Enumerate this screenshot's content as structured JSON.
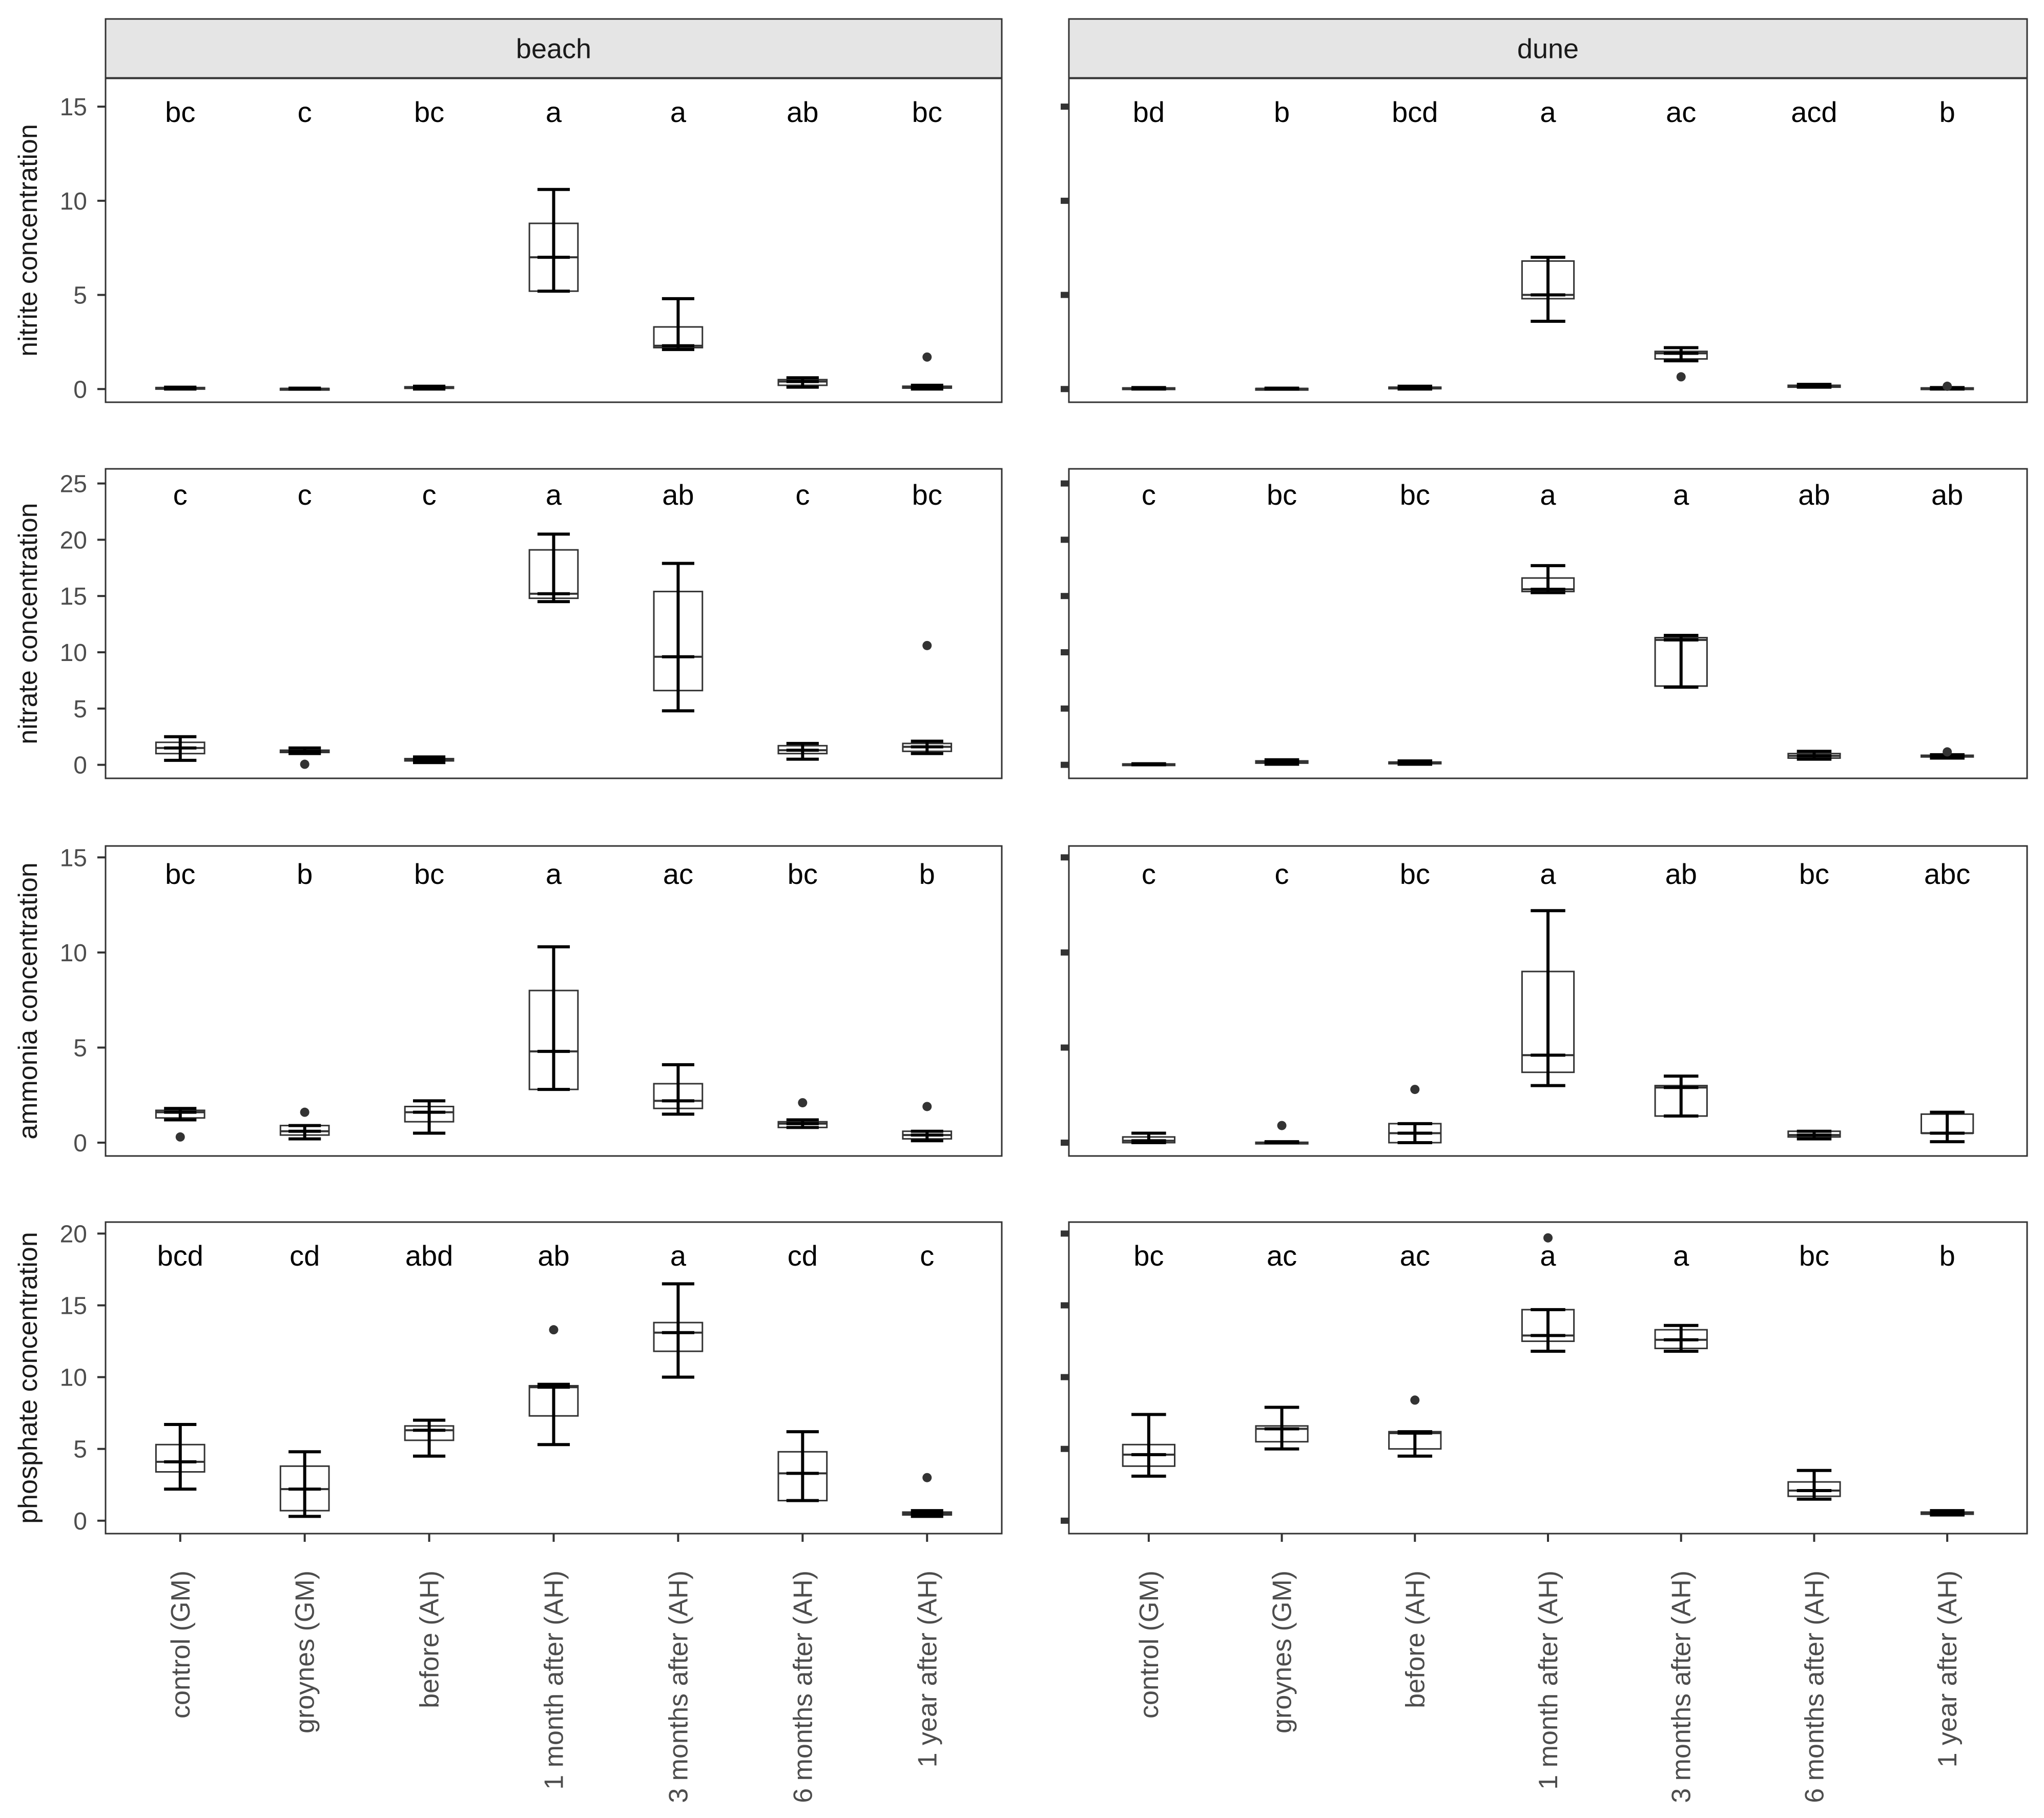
{
  "chart_data": {
    "type": "boxplot",
    "facets": [
      "beach",
      "dune"
    ],
    "categories": [
      "control (GM)",
      "groynes (GM)",
      "before (AH)",
      "1 month after (AH)",
      "3 months after (AH)",
      "6 months after (AH)",
      "1 year after (AH)"
    ],
    "rows": [
      {
        "ylabel": "nitrite concentration",
        "ylim": [
          -0.7,
          16.5
        ],
        "yticks": [
          0,
          5,
          10,
          15
        ],
        "panels": [
          {
            "facet": "beach",
            "letters": [
              "bc",
              "c",
              "bc",
              "a",
              "a",
              "ab",
              "bc"
            ],
            "boxes": [
              {
                "lo": 0.0,
                "q1": 0.02,
                "med": 0.05,
                "q3": 0.08,
                "hi": 0.1,
                "outliers": []
              },
              {
                "lo": 0.0,
                "q1": 0.01,
                "med": 0.02,
                "q3": 0.03,
                "hi": 0.05,
                "outliers": []
              },
              {
                "lo": 0.0,
                "q1": 0.05,
                "med": 0.08,
                "q3": 0.12,
                "hi": 0.15,
                "outliers": []
              },
              {
                "lo": 5.2,
                "q1": 5.2,
                "med": 7.0,
                "q3": 8.8,
                "hi": 10.6,
                "outliers": []
              },
              {
                "lo": 2.1,
                "q1": 2.2,
                "med": 2.3,
                "q3": 3.3,
                "hi": 4.8,
                "outliers": []
              },
              {
                "lo": 0.1,
                "q1": 0.2,
                "med": 0.4,
                "q3": 0.5,
                "hi": 0.6,
                "outliers": []
              },
              {
                "lo": 0.0,
                "q1": 0.05,
                "med": 0.1,
                "q3": 0.15,
                "hi": 0.2,
                "outliers": [
                  1.7
                ]
              }
            ]
          },
          {
            "facet": "dune",
            "letters": [
              "bd",
              "b",
              "bcd",
              "a",
              "ac",
              "acd",
              "b"
            ],
            "boxes": [
              {
                "lo": 0.0,
                "q1": 0.02,
                "med": 0.04,
                "q3": 0.06,
                "hi": 0.08,
                "outliers": []
              },
              {
                "lo": 0.0,
                "q1": 0.01,
                "med": 0.02,
                "q3": 0.03,
                "hi": 0.05,
                "outliers": []
              },
              {
                "lo": 0.0,
                "q1": 0.05,
                "med": 0.08,
                "q3": 0.1,
                "hi": 0.15,
                "outliers": []
              },
              {
                "lo": 3.6,
                "q1": 4.8,
                "med": 5.0,
                "q3": 6.8,
                "hi": 7.0,
                "outliers": []
              },
              {
                "lo": 1.5,
                "q1": 1.6,
                "med": 1.9,
                "q3": 2.0,
                "hi": 2.2,
                "outliers": [
                  0.65
                ]
              },
              {
                "lo": 0.1,
                "q1": 0.1,
                "med": 0.15,
                "q3": 0.2,
                "hi": 0.25,
                "outliers": []
              },
              {
                "lo": 0.0,
                "q1": 0.02,
                "med": 0.04,
                "q3": 0.06,
                "hi": 0.08,
                "outliers": [
                  0.15
                ]
              }
            ]
          }
        ]
      },
      {
        "ylabel": "nitrate concentration",
        "ylim": [
          -1.2,
          26.3
        ],
        "yticks": [
          0,
          5,
          10,
          15,
          20,
          25
        ],
        "panels": [
          {
            "facet": "beach",
            "letters": [
              "c",
              "c",
              "c",
              "a",
              "ab",
              "c",
              "bc"
            ],
            "boxes": [
              {
                "lo": 0.4,
                "q1": 1.0,
                "med": 1.5,
                "q3": 2.0,
                "hi": 2.5,
                "outliers": []
              },
              {
                "lo": 1.0,
                "q1": 1.1,
                "med": 1.2,
                "q3": 1.3,
                "hi": 1.5,
                "outliers": [
                  0.05
                ]
              },
              {
                "lo": 0.2,
                "q1": 0.35,
                "med": 0.45,
                "q3": 0.55,
                "hi": 0.7,
                "outliers": []
              },
              {
                "lo": 14.5,
                "q1": 14.8,
                "med": 15.2,
                "q3": 19.1,
                "hi": 20.5,
                "outliers": []
              },
              {
                "lo": 4.8,
                "q1": 6.6,
                "med": 9.6,
                "q3": 15.4,
                "hi": 17.9,
                "outliers": []
              },
              {
                "lo": 0.5,
                "q1": 1.0,
                "med": 1.3,
                "q3": 1.7,
                "hi": 1.9,
                "outliers": []
              },
              {
                "lo": 1.0,
                "q1": 1.2,
                "med": 1.6,
                "q3": 1.9,
                "hi": 2.1,
                "outliers": [
                  10.6
                ]
              }
            ]
          },
          {
            "facet": "dune",
            "letters": [
              "c",
              "bc",
              "bc",
              "a",
              "a",
              "ab",
              "ab"
            ],
            "boxes": [
              {
                "lo": 0.0,
                "q1": 0.02,
                "med": 0.05,
                "q3": 0.08,
                "hi": 0.1,
                "outliers": []
              },
              {
                "lo": 0.05,
                "q1": 0.15,
                "med": 0.25,
                "q3": 0.35,
                "hi": 0.45,
                "outliers": []
              },
              {
                "lo": 0.05,
                "q1": 0.1,
                "med": 0.15,
                "q3": 0.25,
                "hi": 0.35,
                "outliers": []
              },
              {
                "lo": 15.3,
                "q1": 15.4,
                "med": 15.6,
                "q3": 16.6,
                "hi": 17.7,
                "outliers": []
              },
              {
                "lo": 6.9,
                "q1": 7.0,
                "med": 11.1,
                "q3": 11.3,
                "hi": 11.5,
                "outliers": []
              },
              {
                "lo": 0.5,
                "q1": 0.6,
                "med": 0.8,
                "q3": 1.0,
                "hi": 1.2,
                "outliers": []
              },
              {
                "lo": 0.6,
                "q1": 0.7,
                "med": 0.8,
                "q3": 0.85,
                "hi": 0.9,
                "outliers": [
                  1.15
                ]
              }
            ]
          }
        ]
      },
      {
        "ylabel": "ammonia concentration",
        "ylim": [
          -0.7,
          15.6
        ],
        "yticks": [
          0,
          5,
          10,
          15
        ],
        "panels": [
          {
            "facet": "beach",
            "letters": [
              "bc",
              "b",
              "bc",
              "a",
              "ac",
              "bc",
              "b"
            ],
            "boxes": [
              {
                "lo": 1.2,
                "q1": 1.3,
                "med": 1.6,
                "q3": 1.7,
                "hi": 1.8,
                "outliers": [
                  0.3
                ]
              },
              {
                "lo": 0.2,
                "q1": 0.4,
                "med": 0.6,
                "q3": 0.9,
                "hi": 0.9,
                "outliers": [
                  1.6
                ]
              },
              {
                "lo": 0.5,
                "q1": 1.1,
                "med": 1.6,
                "q3": 1.9,
                "hi": 2.2,
                "outliers": []
              },
              {
                "lo": 2.8,
                "q1": 2.8,
                "med": 4.8,
                "q3": 8.0,
                "hi": 10.3,
                "outliers": []
              },
              {
                "lo": 1.5,
                "q1": 1.8,
                "med": 2.2,
                "q3": 3.1,
                "hi": 4.1,
                "outliers": []
              },
              {
                "lo": 0.8,
                "q1": 0.8,
                "med": 1.0,
                "q3": 1.1,
                "hi": 1.2,
                "outliers": [
                  2.1
                ]
              },
              {
                "lo": 0.1,
                "q1": 0.2,
                "med": 0.4,
                "q3": 0.6,
                "hi": 0.6,
                "outliers": [
                  1.9
                ]
              }
            ]
          },
          {
            "facet": "dune",
            "letters": [
              "c",
              "c",
              "bc",
              "a",
              "ab",
              "bc",
              "abc"
            ],
            "boxes": [
              {
                "lo": 0.0,
                "q1": 0.0,
                "med": 0.1,
                "q3": 0.3,
                "hi": 0.5,
                "outliers": []
              },
              {
                "lo": 0.0,
                "q1": 0.0,
                "med": 0.0,
                "q3": 0.02,
                "hi": 0.05,
                "outliers": [
                  0.9
                ]
              },
              {
                "lo": 0.0,
                "q1": 0.0,
                "med": 0.5,
                "q3": 1.0,
                "hi": 1.0,
                "outliers": [
                  2.8
                ]
              },
              {
                "lo": 3.0,
                "q1": 3.7,
                "med": 4.6,
                "q3": 9.0,
                "hi": 12.2,
                "outliers": []
              },
              {
                "lo": 1.4,
                "q1": 1.4,
                "med": 2.9,
                "q3": 3.0,
                "hi": 3.5,
                "outliers": []
              },
              {
                "lo": 0.2,
                "q1": 0.3,
                "med": 0.4,
                "q3": 0.6,
                "hi": 0.6,
                "outliers": []
              },
              {
                "lo": 0.05,
                "q1": 0.5,
                "med": 0.5,
                "q3": 1.5,
                "hi": 1.6,
                "outliers": []
              }
            ]
          }
        ]
      },
      {
        "ylabel": "phosphate concentration",
        "ylim": [
          -0.9,
          20.8
        ],
        "yticks": [
          0,
          5,
          10,
          15,
          20
        ],
        "panels": [
          {
            "facet": "beach",
            "letters": [
              "bcd",
              "cd",
              "abd",
              "ab",
              "a",
              "cd",
              "c"
            ],
            "boxes": [
              {
                "lo": 2.2,
                "q1": 3.4,
                "med": 4.1,
                "q3": 5.3,
                "hi": 6.7,
                "outliers": []
              },
              {
                "lo": 0.3,
                "q1": 0.7,
                "med": 2.2,
                "q3": 3.8,
                "hi": 4.8,
                "outliers": []
              },
              {
                "lo": 4.5,
                "q1": 5.6,
                "med": 6.3,
                "q3": 6.6,
                "hi": 7.0,
                "outliers": []
              },
              {
                "lo": 5.3,
                "q1": 7.3,
                "med": 9.3,
                "q3": 9.4,
                "hi": 9.5,
                "outliers": [
                  13.3
                ]
              },
              {
                "lo": 10.0,
                "q1": 11.8,
                "med": 13.1,
                "q3": 13.8,
                "hi": 16.5,
                "outliers": []
              },
              {
                "lo": 1.4,
                "q1": 1.4,
                "med": 3.3,
                "q3": 4.8,
                "hi": 6.2,
                "outliers": []
              },
              {
                "lo": 0.3,
                "q1": 0.4,
                "med": 0.5,
                "q3": 0.6,
                "hi": 0.7,
                "outliers": [
                  3.0
                ]
              }
            ]
          },
          {
            "facet": "dune",
            "letters": [
              "bc",
              "ac",
              "ac",
              "a",
              "a",
              "bc",
              "b"
            ],
            "boxes": [
              {
                "lo": 3.1,
                "q1": 3.8,
                "med": 4.6,
                "q3": 5.3,
                "hi": 7.4,
                "outliers": []
              },
              {
                "lo": 5.0,
                "q1": 5.5,
                "med": 6.4,
                "q3": 6.6,
                "hi": 7.9,
                "outliers": []
              },
              {
                "lo": 4.5,
                "q1": 5.0,
                "med": 6.1,
                "q3": 6.2,
                "hi": 6.2,
                "outliers": [
                  8.4
                ]
              },
              {
                "lo": 11.8,
                "q1": 12.5,
                "med": 12.9,
                "q3": 14.7,
                "hi": 14.7,
                "outliers": [
                  19.7
                ]
              },
              {
                "lo": 11.8,
                "q1": 12.0,
                "med": 12.6,
                "q3": 13.3,
                "hi": 13.6,
                "outliers": []
              },
              {
                "lo": 1.5,
                "q1": 1.7,
                "med": 2.1,
                "q3": 2.7,
                "hi": 3.5,
                "outliers": []
              },
              {
                "lo": 0.4,
                "q1": 0.45,
                "med": 0.5,
                "q3": 0.6,
                "hi": 0.7,
                "outliers": []
              }
            ]
          }
        ]
      }
    ]
  }
}
